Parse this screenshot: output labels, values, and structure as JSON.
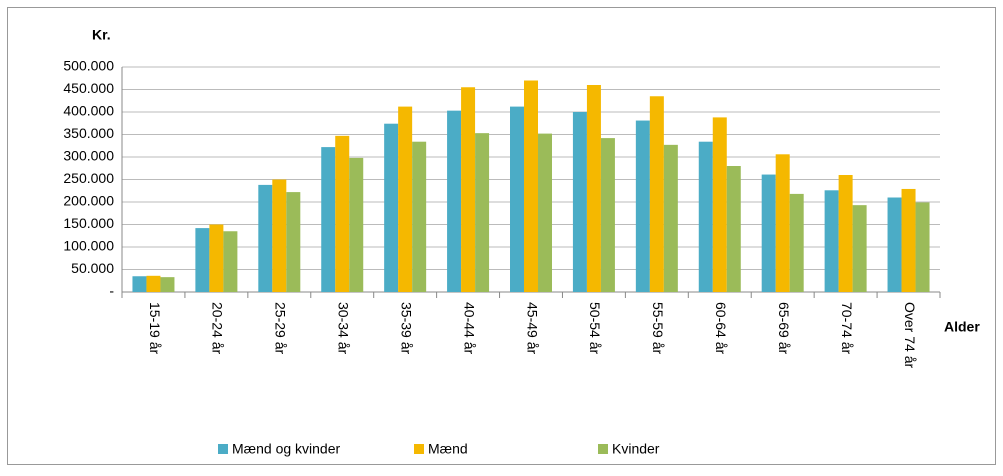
{
  "chart_data": {
    "type": "bar",
    "y_label": "Kr.",
    "x_label": "Alder",
    "categories": [
      "15-19 år",
      "20-24 år",
      "25-29 år",
      "30-34 år",
      "35-39 år",
      "40-44 år",
      "45-49 år",
      "50-54 år",
      "55-59 år",
      "60-64 år",
      "65-69 år",
      "70-74 år",
      "Over 74 år"
    ],
    "series": [
      {
        "name": "Mænd og kvinder",
        "color": "#4bacc6",
        "values": [
          35000,
          142000,
          238000,
          322000,
          374000,
          403000,
          412000,
          400000,
          381000,
          334000,
          261000,
          226000,
          210000
        ]
      },
      {
        "name": "Mænd",
        "color": "#f5b800",
        "values": [
          36000,
          150000,
          250000,
          347000,
          412000,
          455000,
          470000,
          460000,
          435000,
          388000,
          306000,
          260000,
          229000
        ]
      },
      {
        "name": "Kvinder",
        "color": "#9bbb59",
        "values": [
          33000,
          135000,
          222000,
          298000,
          334000,
          353000,
          352000,
          342000,
          327000,
          280000,
          218000,
          193000,
          199000
        ]
      }
    ],
    "ylim": [
      0,
      500000
    ],
    "yticks": [
      {
        "value": 0,
        "label": "-"
      },
      {
        "value": 50000,
        "label": "50.000"
      },
      {
        "value": 100000,
        "label": "100.000"
      },
      {
        "value": 150000,
        "label": "150.000"
      },
      {
        "value": 200000,
        "label": "200.000"
      },
      {
        "value": 250000,
        "label": "250.000"
      },
      {
        "value": 300000,
        "label": "300.000"
      },
      {
        "value": 350000,
        "label": "350.000"
      },
      {
        "value": 400000,
        "label": "400.000"
      },
      {
        "value": 450000,
        "label": "450.000"
      },
      {
        "value": 500000,
        "label": "500.000"
      }
    ],
    "grid": true,
    "legend": "bottom"
  }
}
